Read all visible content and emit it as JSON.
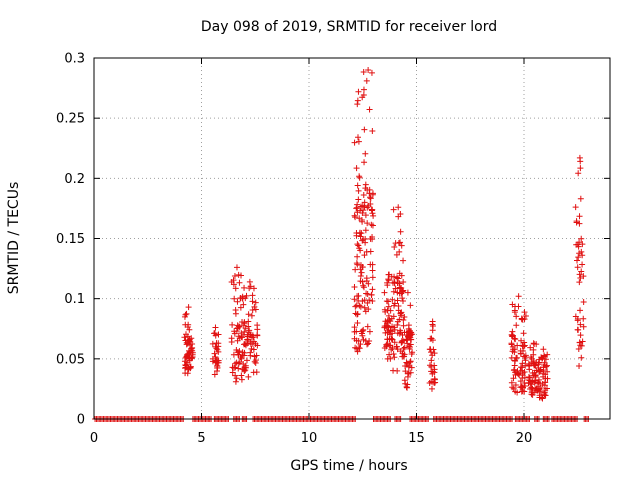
{
  "chart_data": {
    "type": "scatter",
    "title": "Day 098 of 2019, SRMTID for receiver lord",
    "xlabel": "GPS time / hours",
    "ylabel": "SRMTID / TECUs",
    "xlim": [
      0,
      24
    ],
    "ylim": [
      0,
      0.3
    ],
    "xticks": [
      0,
      5,
      10,
      15,
      20
    ],
    "xtick_labels": [
      "0",
      "5",
      "10",
      "15",
      "20"
    ],
    "yticks": [
      0,
      0.05,
      0.1,
      0.15,
      0.2,
      0.25,
      0.3
    ],
    "ytick_labels": [
      "0",
      "0.05",
      "0.1",
      "0.15",
      "0.2",
      "0.25",
      "0.3"
    ],
    "grid": true,
    "marker": "+",
    "color": "#e01010",
    "zero_segments": [
      [
        0.05,
        4.2
      ],
      [
        4.6,
        5.5
      ],
      [
        5.6,
        6.3
      ],
      [
        6.5,
        6.8
      ],
      [
        6.9,
        7.1
      ],
      [
        7.4,
        12.2
      ],
      [
        13.0,
        13.8
      ],
      [
        14.0,
        14.3
      ],
      [
        14.7,
        15.6
      ],
      [
        15.8,
        19.5
      ],
      [
        19.6,
        20.3
      ],
      [
        20.5,
        20.7
      ],
      [
        20.9,
        21.2
      ],
      [
        21.3,
        22.5
      ],
      [
        22.8,
        23.0
      ]
    ],
    "clusters": [
      {
        "x_range": [
          4.2,
          4.6
        ],
        "y_min": 0.038,
        "y_max": 0.093,
        "n": 60,
        "seed": 1,
        "top_density": 0.25
      },
      {
        "x_range": [
          5.5,
          5.8
        ],
        "y_min": 0.037,
        "y_max": 0.076,
        "n": 28,
        "seed": 2,
        "top_density": 0.3
      },
      {
        "x_range": [
          6.4,
          6.9
        ],
        "y_min": 0.031,
        "y_max": 0.126,
        "n": 55,
        "seed": 3,
        "top_density": 0.25
      },
      {
        "x_range": [
          6.9,
          7.6
        ],
        "y_min": 0.035,
        "y_max": 0.114,
        "n": 75,
        "seed": 4,
        "top_density": 0.25
      },
      {
        "x_range": [
          12.1,
          12.5
        ],
        "y_min": 0.056,
        "y_max": 0.272,
        "n": 75,
        "seed": 5,
        "top_density": 0.2
      },
      {
        "x_range": [
          12.5,
          13.0
        ],
        "y_min": 0.062,
        "y_max": 0.29,
        "n": 75,
        "seed": 6,
        "top_density": 0.2
      },
      {
        "x_range": [
          13.5,
          13.9
        ],
        "y_min": 0.05,
        "y_max": 0.12,
        "n": 55,
        "seed": 7,
        "top_density": 0.3
      },
      {
        "x_range": [
          13.9,
          14.4
        ],
        "y_min": 0.04,
        "y_max": 0.176,
        "n": 75,
        "seed": 8,
        "top_density": 0.2
      },
      {
        "x_range": [
          14.4,
          14.8
        ],
        "y_min": 0.026,
        "y_max": 0.105,
        "n": 55,
        "seed": 9,
        "top_density": 0.25
      },
      {
        "x_range": [
          15.6,
          15.9
        ],
        "y_min": 0.025,
        "y_max": 0.081,
        "n": 28,
        "seed": 10,
        "top_density": 0.3
      },
      {
        "x_range": [
          19.4,
          20.1
        ],
        "y_min": 0.022,
        "y_max": 0.102,
        "n": 85,
        "seed": 11,
        "top_density": 0.2
      },
      {
        "x_range": [
          20.2,
          20.7
        ],
        "y_min": 0.02,
        "y_max": 0.063,
        "n": 60,
        "seed": 12,
        "top_density": 0.3
      },
      {
        "x_range": [
          20.7,
          21.1
        ],
        "y_min": 0.017,
        "y_max": 0.058,
        "n": 40,
        "seed": 13,
        "top_density": 0.3
      },
      {
        "x_range": [
          22.4,
          22.8
        ],
        "y_min": 0.044,
        "y_max": 0.217,
        "n": 45,
        "seed": 14,
        "top_density": 0.35
      }
    ]
  }
}
